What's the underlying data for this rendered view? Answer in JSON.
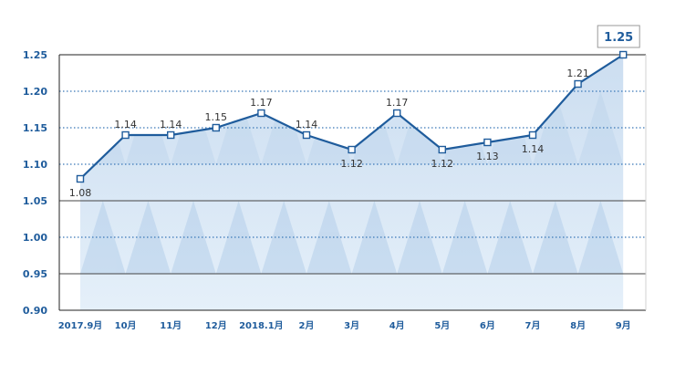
{
  "chart_data": {
    "type": "line",
    "categories": [
      "2017.9月",
      "10月",
      "11月",
      "12月",
      "2018.1月",
      "2月",
      "3月",
      "4月",
      "5月",
      "6月",
      "7月",
      "8月",
      "9月"
    ],
    "series": [
      {
        "values": [
          1.08,
          1.14,
          1.14,
          1.15,
          1.17,
          1.14,
          1.12,
          1.17,
          1.12,
          1.13,
          1.14,
          1.21,
          1.25
        ]
      }
    ],
    "ylim": [
      0.9,
      1.25
    ],
    "yticks": [
      "1.25",
      "1.20",
      "1.15",
      "1.10",
      "1.05",
      "1.00",
      "0.95",
      "0.90"
    ],
    "data_labels": [
      "1.08",
      "1.14",
      "1.14",
      "1.15",
      "1.17",
      "1.14",
      "1.12",
      "1.17",
      "1.12",
      "1.13",
      "1.14",
      "1.21",
      "1.25"
    ],
    "grid": true,
    "colors": {
      "line": "#1f5c9c",
      "area": "#c9dcef",
      "dotted_grid": "#3a78b8",
      "solid_grid": "#444444"
    }
  }
}
